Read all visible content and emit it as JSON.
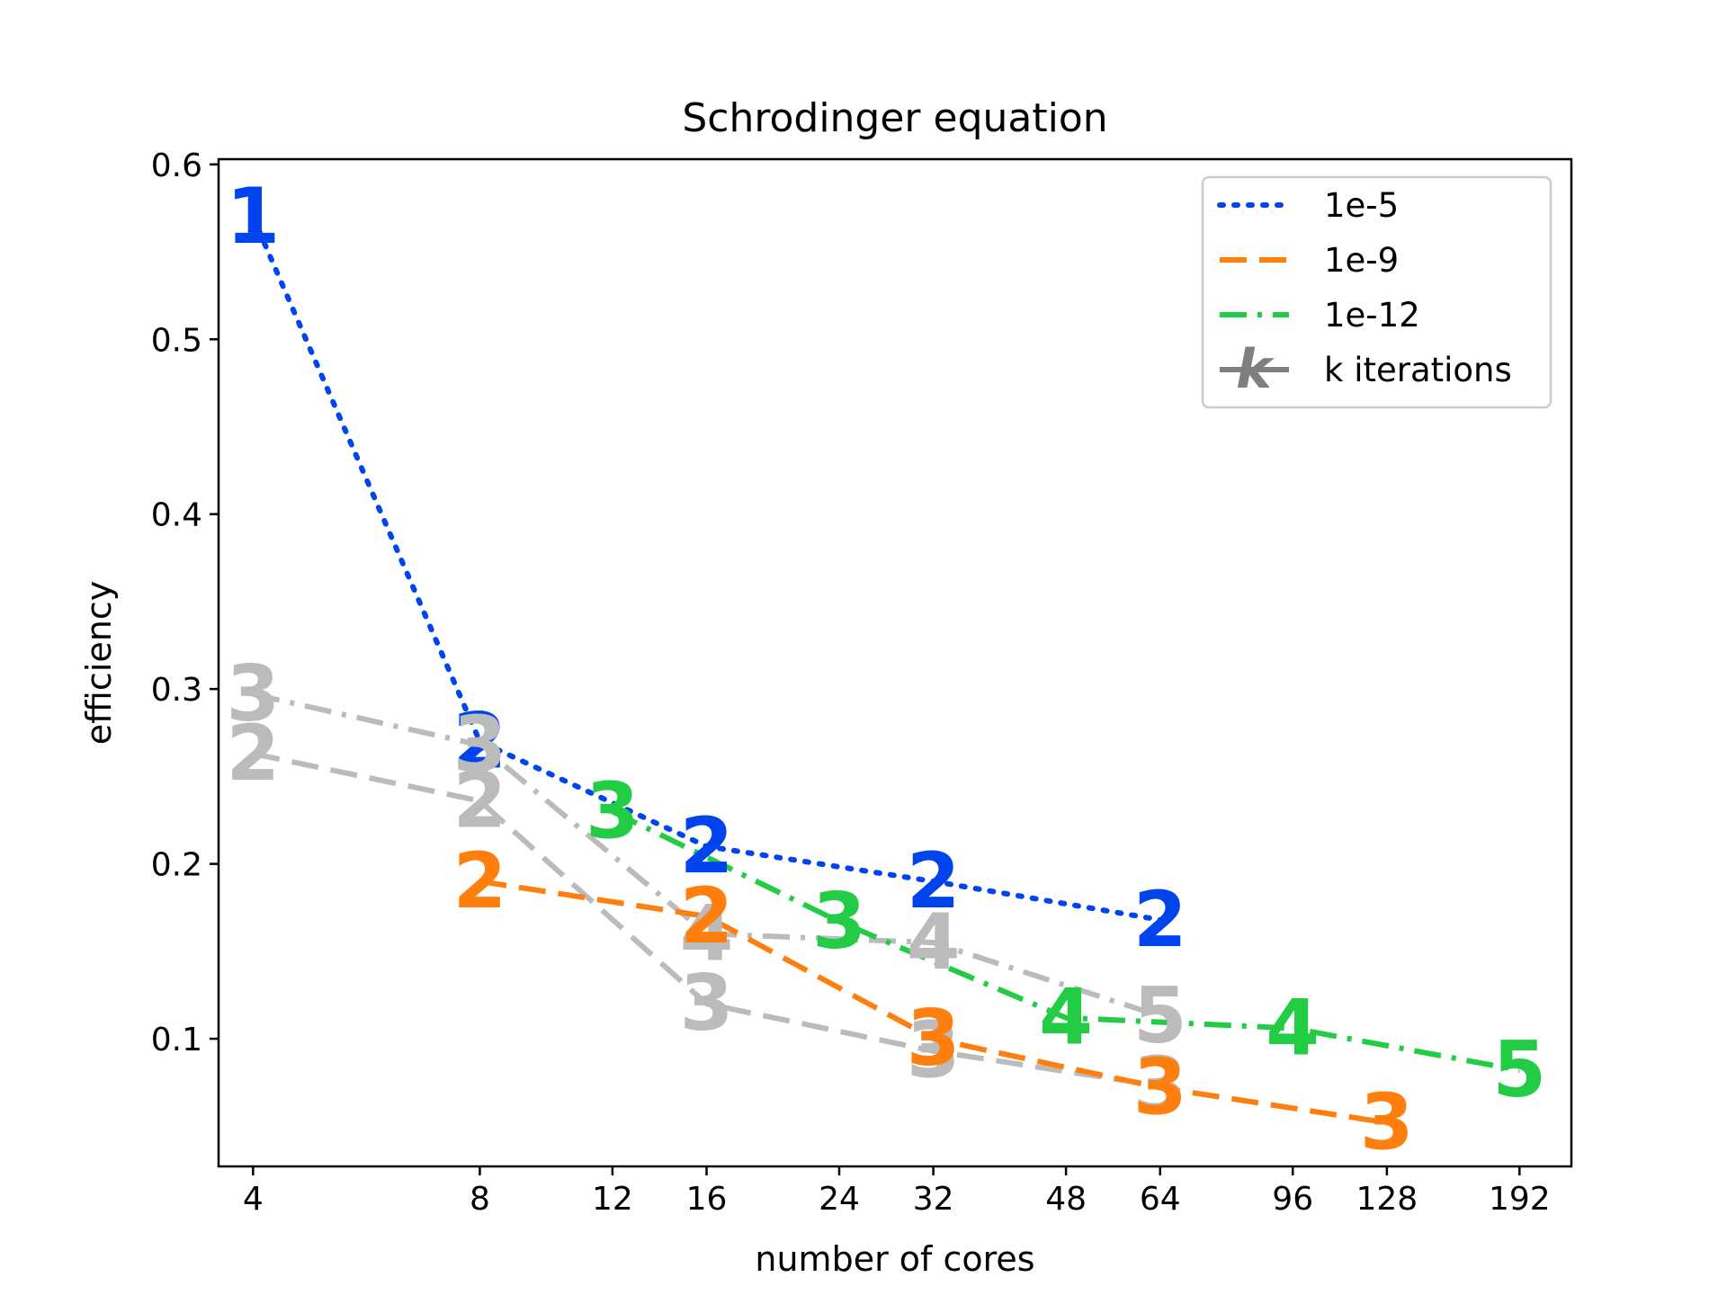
{
  "chart_data": {
    "type": "line",
    "title": "Schrodinger equation",
    "xlabel": "number of cores",
    "ylabel": "efficiency",
    "xscale": "log",
    "xticks": [
      4,
      8,
      12,
      16,
      24,
      32,
      48,
      64,
      96,
      128,
      192
    ],
    "xtick_labels": [
      "4",
      "8",
      "12",
      "16",
      "24",
      "32",
      "48",
      "64",
      "96",
      "128",
      "192"
    ],
    "xlim": [
      3.6,
      225
    ],
    "yticks": [
      0.1,
      0.2,
      0.3,
      0.4,
      0.5,
      0.6
    ],
    "ytick_labels": [
      "0.1",
      "0.2",
      "0.3",
      "0.4",
      "0.5",
      "0.6"
    ],
    "ylim": [
      0.027,
      0.603
    ],
    "grid": false,
    "legend_position": "top-right",
    "legend": [
      {
        "label": "1e-5",
        "style": "dotted",
        "color": "#0044ee"
      },
      {
        "label": "1e-9",
        "style": "dashed",
        "color": "#ff7f0e"
      },
      {
        "label": "1e-12",
        "style": "dashdot",
        "color": "#22cc44"
      },
      {
        "label": "k iterations",
        "style": "solid",
        "color": "#7f7f7f",
        "marker": "k"
      }
    ],
    "series": [
      {
        "name": "1e-5",
        "color": "#0044ee",
        "style": "dotted",
        "x": [
          4,
          8,
          16,
          32,
          64
        ],
        "y": [
          0.57,
          0.27,
          0.21,
          0.19,
          0.168
        ],
        "iterations": [
          "1",
          "2",
          "2",
          "2",
          "2"
        ]
      },
      {
        "color": "#bbbbbb",
        "style": "dashed",
        "x": [
          4,
          8,
          16,
          32,
          64
        ],
        "y": [
          0.263,
          0.236,
          0.12,
          0.093,
          0.073
        ],
        "iterations": [
          "2",
          "2",
          "3",
          "3",
          "3"
        ]
      },
      {
        "color": "#bbbbbb",
        "style": "dashdot",
        "x": [
          4,
          8,
          16,
          32,
          64
        ],
        "y": [
          0.297,
          0.268,
          0.16,
          0.155,
          0.113
        ],
        "iterations": [
          "3",
          "3",
          "4",
          "4",
          "5"
        ]
      },
      {
        "name": "1e-9",
        "color": "#ff7f0e",
        "style": "dashed",
        "x": [
          8,
          16,
          32,
          64,
          128
        ],
        "y": [
          0.19,
          0.17,
          0.1,
          0.072,
          0.052
        ],
        "iterations": [
          "2",
          "2",
          "3",
          "3",
          "3"
        ]
      },
      {
        "name": "1e-12",
        "color": "#22cc44",
        "style": "dashdot",
        "x": [
          12,
          24,
          48,
          96,
          192
        ],
        "y": [
          0.23,
          0.167,
          0.112,
          0.106,
          0.082
        ],
        "iterations": [
          "3",
          "3",
          "4",
          "4",
          "5"
        ]
      }
    ]
  }
}
